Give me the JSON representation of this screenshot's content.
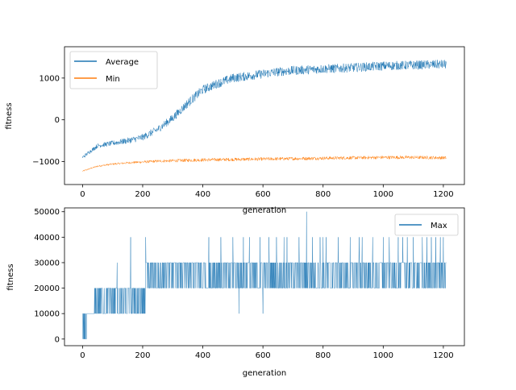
{
  "chart_data": [
    {
      "type": "line",
      "title": "",
      "xlabel": "generation",
      "ylabel": "fitness",
      "xlim": [
        -60,
        1270
      ],
      "ylim": [
        -1550,
        1750
      ],
      "xticks": [
        0,
        200,
        400,
        600,
        800,
        1000,
        1200
      ],
      "yticks": [
        -1000,
        0,
        1000
      ],
      "grid": false,
      "legend_position": "top-left",
      "generations": 1210,
      "series": [
        {
          "name": "Average",
          "color": "#1f77b4",
          "points": [
            [
              0,
              -900
            ],
            [
              50,
              -620
            ],
            [
              100,
              -560
            ],
            [
              150,
              -500
            ],
            [
              200,
              -420
            ],
            [
              250,
              -230
            ],
            [
              300,
              40
            ],
            [
              350,
              400
            ],
            [
              400,
              720
            ],
            [
              450,
              870
            ],
            [
              500,
              1000
            ],
            [
              550,
              1050
            ],
            [
              600,
              1100
            ],
            [
              650,
              1150
            ],
            [
              700,
              1180
            ],
            [
              750,
              1200
            ],
            [
              800,
              1220
            ],
            [
              850,
              1230
            ],
            [
              900,
              1250
            ],
            [
              950,
              1270
            ],
            [
              1000,
              1290
            ],
            [
              1050,
              1300
            ],
            [
              1100,
              1310
            ],
            [
              1150,
              1320
            ],
            [
              1210,
              1330
            ]
          ],
          "noise": 110
        },
        {
          "name": "Min",
          "color": "#ff7f0e",
          "points": [
            [
              0,
              -1230
            ],
            [
              50,
              -1110
            ],
            [
              100,
              -1060
            ],
            [
              150,
              -1030
            ],
            [
              200,
              -1010
            ],
            [
              250,
              -990
            ],
            [
              300,
              -980
            ],
            [
              400,
              -960
            ],
            [
              500,
              -950
            ],
            [
              600,
              -940
            ],
            [
              700,
              -930
            ],
            [
              800,
              -920
            ],
            [
              900,
              -910
            ],
            [
              1000,
              -900
            ],
            [
              1100,
              -900
            ],
            [
              1210,
              -910
            ]
          ],
          "noise": 40
        }
      ]
    },
    {
      "type": "line",
      "title": "",
      "xlabel": "generation",
      "ylabel": "fitness",
      "xlim": [
        -60,
        1270
      ],
      "ylim": [
        -2600,
        51500
      ],
      "xticks": [
        0,
        200,
        400,
        600,
        800,
        1000,
        1200
      ],
      "yticks": [
        0,
        10000,
        20000,
        30000,
        40000,
        50000
      ],
      "grid": false,
      "legend_position": "top-right",
      "series": [
        {
          "name": "Max",
          "color": "#1f77b4",
          "segments": [
            {
              "from": 0,
              "to": 15,
              "levels": [
                0,
                10000
              ]
            },
            {
              "from": 15,
              "to": 40,
              "levels": [
                10000
              ]
            },
            {
              "from": 40,
              "to": 330,
              "levels": [
                10000,
                20000
              ]
            },
            {
              "from": 210,
              "to": 330,
              "levels": [
                20000,
                30000
              ]
            },
            {
              "from": 330,
              "to": 1210,
              "levels": [
                20000,
                30000
              ]
            }
          ],
          "spikes": [
            [
              115,
              30000
            ],
            [
              160,
              40000
            ],
            [
              210,
              40000
            ],
            [
              250,
              30000
            ],
            [
              300,
              30000
            ],
            [
              420,
              40000
            ],
            [
              460,
              40000
            ],
            [
              500,
              40000
            ],
            [
              520,
              10000
            ],
            [
              535,
              40000
            ],
            [
              555,
              40000
            ],
            [
              590,
              40000
            ],
            [
              600,
              10000
            ],
            [
              620,
              40000
            ],
            [
              645,
              40000
            ],
            [
              670,
              40000
            ],
            [
              680,
              40000
            ],
            [
              720,
              40000
            ],
            [
              745,
              50000
            ],
            [
              765,
              40000
            ],
            [
              790,
              40000
            ],
            [
              800,
              40000
            ],
            [
              810,
              40000
            ],
            [
              850,
              40000
            ],
            [
              890,
              40000
            ],
            [
              920,
              40000
            ],
            [
              930,
              40000
            ],
            [
              965,
              40000
            ],
            [
              1000,
              40000
            ],
            [
              1020,
              40000
            ],
            [
              1050,
              40000
            ],
            [
              1065,
              40000
            ],
            [
              1080,
              40000
            ],
            [
              1100,
              40000
            ],
            [
              1130,
              40000
            ],
            [
              1145,
              40000
            ],
            [
              1160,
              40000
            ],
            [
              1175,
              40000
            ],
            [
              1190,
              40000
            ],
            [
              1200,
              40000
            ]
          ]
        }
      ]
    }
  ]
}
